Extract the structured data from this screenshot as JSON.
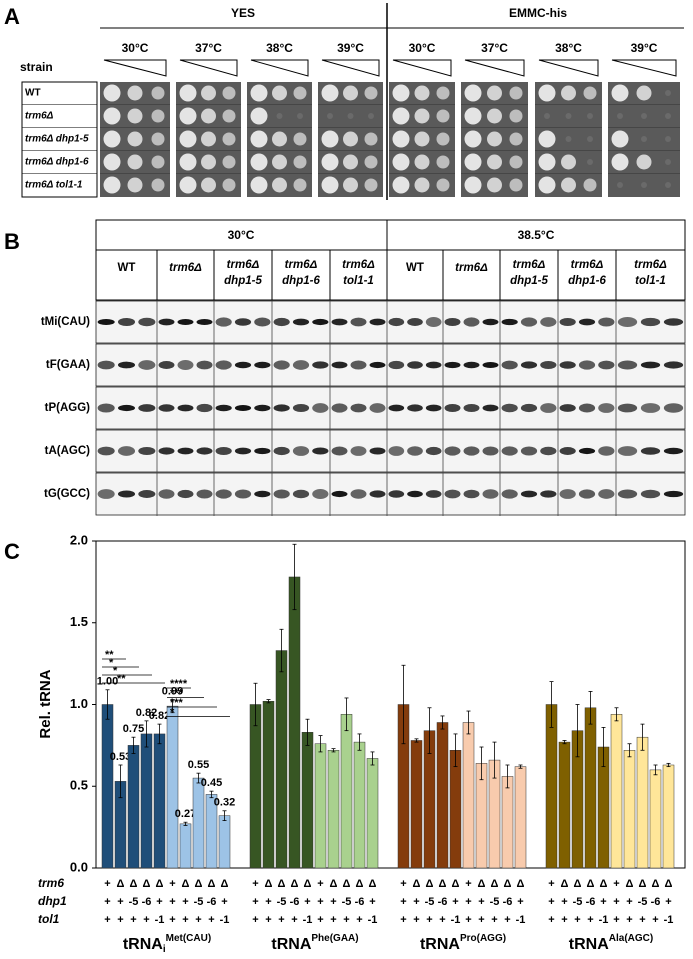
{
  "panel_a": {
    "label": "A",
    "conditions": [
      "YES",
      "EMMC-his"
    ],
    "temperatures": [
      "30°C",
      "37°C",
      "38°C",
      "39°C",
      "30°C",
      "37°C",
      "38°C",
      "39°C"
    ],
    "strain_label": "strain",
    "strains": [
      "WT",
      "trm6Δ",
      "trm6Δ dhp1-5",
      "trm6Δ dhp1-6",
      "trm6Δ tol1-1"
    ]
  },
  "panel_b": {
    "label": "B",
    "temperatures": [
      "30°C",
      "38.5°C"
    ],
    "strains": [
      [
        "WT"
      ],
      [
        "trm6Δ"
      ],
      [
        "trm6Δ",
        "dhp1-5"
      ],
      [
        "trm6Δ",
        "dhp1-6"
      ],
      [
        "trm6Δ",
        "tol1-1"
      ]
    ],
    "probes": [
      "tMi(CAU)",
      "tF(GAA)",
      "tP(AGG)",
      "tA(AGC)",
      "tG(GCC)"
    ]
  },
  "panel_c": {
    "label": "C"
  },
  "chart_data": {
    "type": "bar",
    "ylabel": "Rel. tRNA",
    "ylim": [
      0,
      2
    ],
    "yticks": [
      {
        "value": 0,
        "label": "0.0"
      },
      {
        "value": 0.5,
        "label": "0.5"
      },
      {
        "value": 1,
        "label": "1.0"
      },
      {
        "value": 1.5,
        "label": "1.5"
      },
      {
        "value": 2,
        "label": "2.0"
      }
    ],
    "genotype": [
      {
        "name": "trm6",
        "symbols": [
          "+",
          "Δ",
          "Δ",
          "Δ",
          "Δ",
          "+",
          "Δ",
          "Δ",
          "Δ",
          "Δ"
        ]
      },
      {
        "name": "dhp1",
        "symbols": [
          "+",
          "+",
          "-5",
          "-6",
          "+",
          "+",
          "+",
          "-5",
          "-6",
          "+"
        ]
      },
      {
        "name": "tol1",
        "symbols": [
          "+",
          "+",
          "+",
          "+",
          "-1",
          "+",
          "+",
          "+",
          "+",
          "-1"
        ]
      }
    ],
    "groups": [
      {
        "name": {
          "main": "tRNA",
          "sub": "i",
          "sup": "Met(CAU)"
        },
        "values": [
          1.0,
          0.53,
          0.75,
          0.82,
          0.82,
          0.99,
          0.27,
          0.55,
          0.45,
          0.32
        ],
        "value_labels": [
          "1.00",
          "0.53",
          "0.75",
          "0.82",
          "0.82",
          "0.99",
          "0.27",
          "0.55",
          "0.45",
          "0.32"
        ],
        "errors": [
          0.09,
          0.1,
          0.05,
          0.08,
          0.06,
          0.04,
          0.01,
          0.03,
          0.02,
          0.03
        ],
        "colors": [
          "#1f4e79",
          "#1f4e79",
          "#1f4e79",
          "#1f4e79",
          "#1f4e79",
          "#9dc3e6",
          "#9dc3e6",
          "#9dc3e6",
          "#9dc3e6",
          "#9dc3e6"
        ],
        "significance": [
          {
            "bars": [
              0,
              1
            ],
            "label": "**"
          },
          {
            "bars": [
              0,
              2
            ],
            "label": "*"
          },
          {
            "bars": [
              0,
              3
            ],
            "label": "*"
          },
          {
            "bars": [
              0,
              4
            ],
            "label": "**"
          },
          {
            "bars": [
              5,
              6
            ],
            "label": "****"
          },
          {
            "bars": [
              5,
              7
            ],
            "label": "***"
          },
          {
            "bars": [
              5,
              8
            ],
            "label": "***"
          },
          {
            "bars": [
              5,
              9
            ],
            "label": "*"
          }
        ]
      },
      {
        "name": {
          "main": "tRNA",
          "sup": "Phe(GAA)"
        },
        "values": [
          1.0,
          1.02,
          1.33,
          1.78,
          0.83,
          0.76,
          0.72,
          0.94,
          0.77,
          0.67
        ],
        "errors": [
          0.13,
          0.01,
          0.13,
          0.2,
          0.08,
          0.05,
          0.01,
          0.1,
          0.05,
          0.04
        ],
        "colors": [
          "#375623",
          "#375623",
          "#375623",
          "#375623",
          "#375623",
          "#a9d18e",
          "#a9d18e",
          "#a9d18e",
          "#a9d18e",
          "#a9d18e"
        ]
      },
      {
        "name": {
          "main": "tRNA",
          "sup": "Pro(AGG)"
        },
        "values": [
          1.0,
          0.78,
          0.84,
          0.89,
          0.72,
          0.89,
          0.64,
          0.66,
          0.56,
          0.62
        ],
        "errors": [
          0.24,
          0.01,
          0.14,
          0.04,
          0.1,
          0.07,
          0.1,
          0.11,
          0.07,
          0.01
        ],
        "colors": [
          "#843c0c",
          "#843c0c",
          "#843c0c",
          "#843c0c",
          "#843c0c",
          "#f8cbad",
          "#f8cbad",
          "#f8cbad",
          "#f8cbad",
          "#f8cbad"
        ]
      },
      {
        "name": {
          "main": "tRNA",
          "sup": "Ala(AGC)"
        },
        "values": [
          1.0,
          0.77,
          0.84,
          0.98,
          0.74,
          0.94,
          0.72,
          0.8,
          0.6,
          0.63
        ],
        "errors": [
          0.14,
          0.01,
          0.16,
          0.1,
          0.12,
          0.04,
          0.04,
          0.08,
          0.03,
          0.01
        ],
        "colors": [
          "#7f6000",
          "#7f6000",
          "#7f6000",
          "#7f6000",
          "#7f6000",
          "#ffe699",
          "#ffe699",
          "#ffe699",
          "#ffe699",
          "#ffe699"
        ]
      }
    ]
  }
}
